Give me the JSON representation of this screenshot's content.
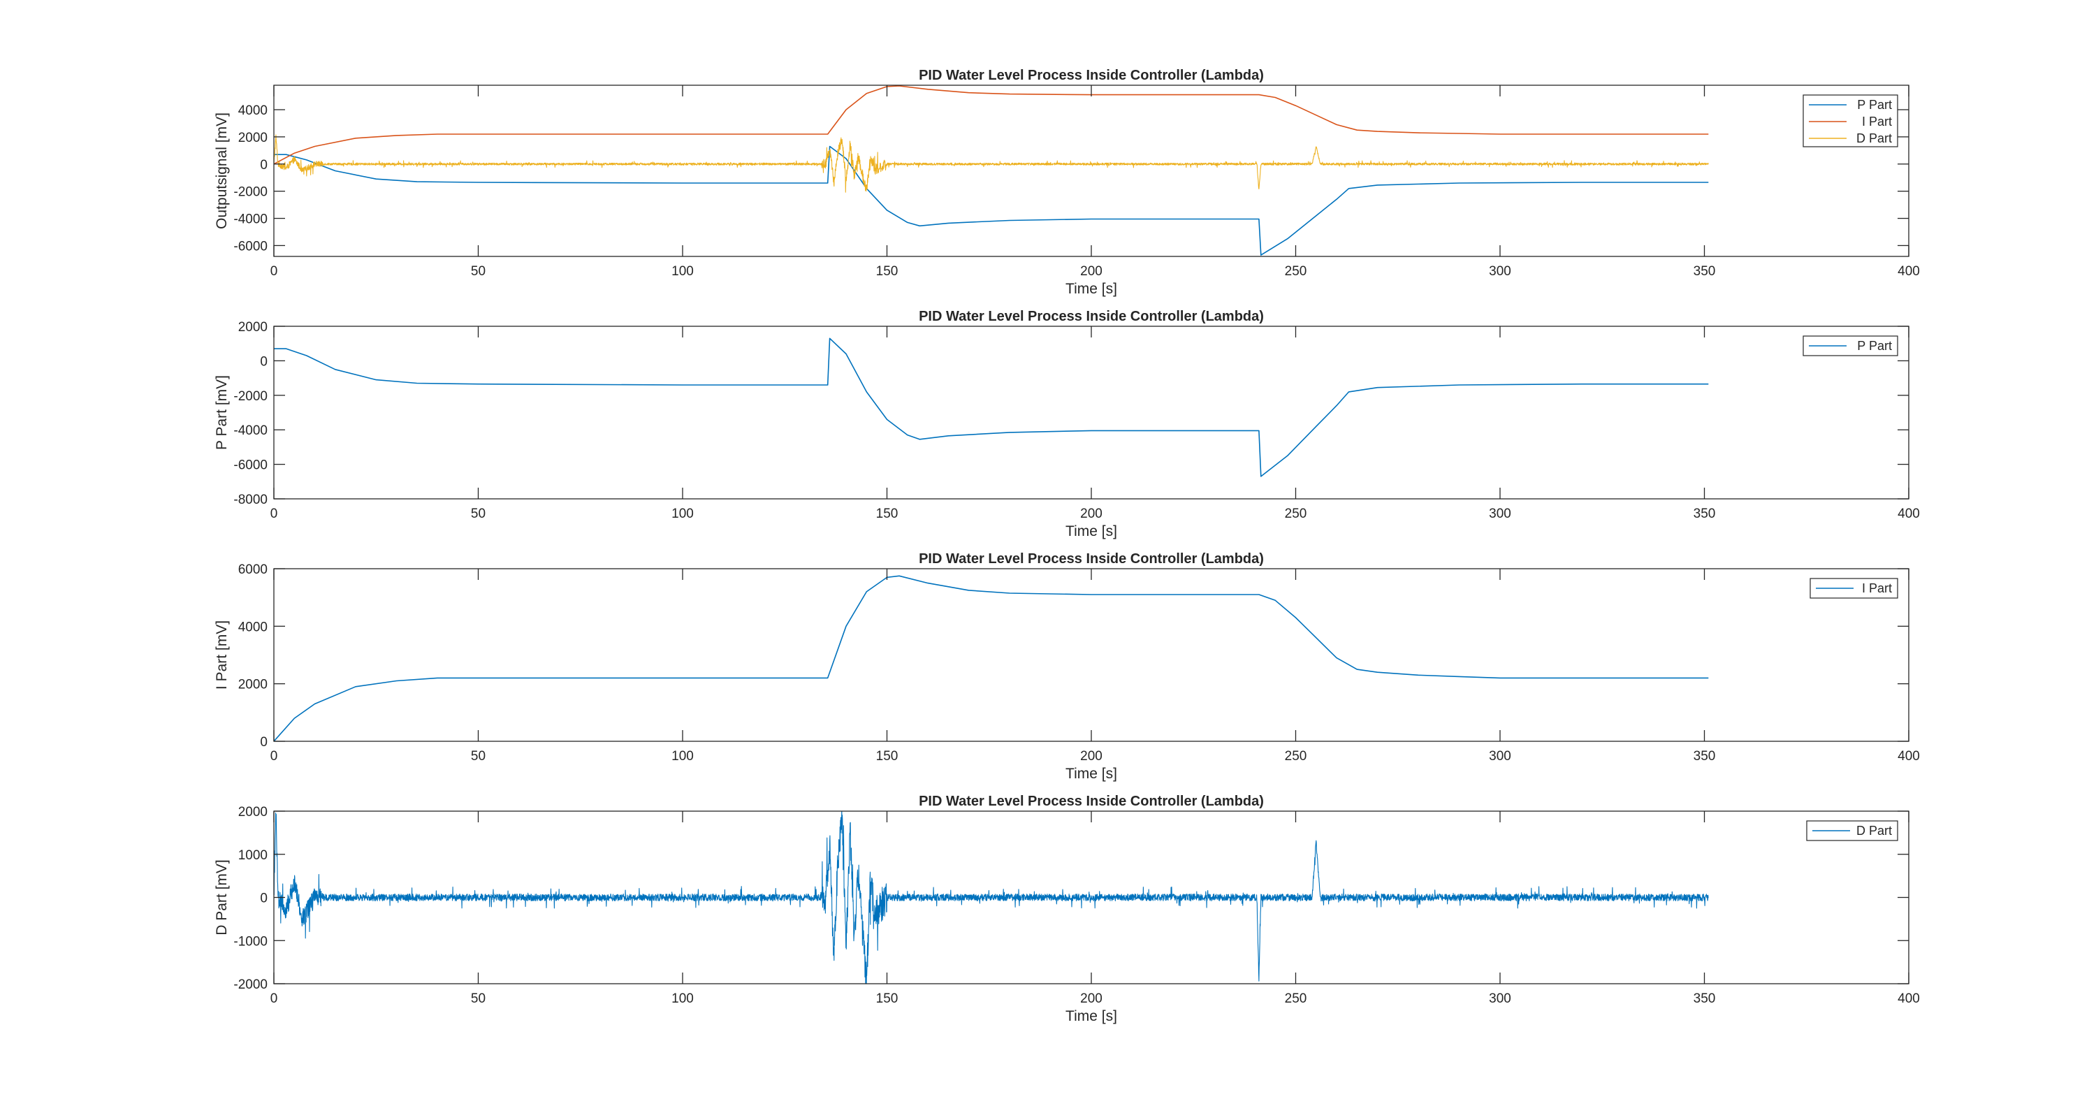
{
  "chart_data": [
    {
      "type": "line",
      "title": "PID Water Level Process Inside Controller (Lambda)",
      "xlabel": "Time [s]",
      "ylabel": "Outputsignal [mV]",
      "xlim": [
        0,
        400
      ],
      "ylim": [
        -6800,
        5800
      ],
      "xticks": [
        0,
        50,
        100,
        150,
        200,
        250,
        300,
        350,
        400
      ],
      "yticks": [
        -6000,
        -4000,
        -2000,
        0,
        2000,
        4000
      ],
      "legend": "top-right",
      "grid": false,
      "series": [
        {
          "name": "P Part",
          "color": "#0072BD",
          "x": [
            0,
            3,
            8,
            15,
            25,
            35,
            50,
            100,
            135.5,
            136,
            140,
            145,
            150,
            155,
            158,
            165,
            180,
            200,
            220,
            241,
            241.5,
            248,
            255,
            260,
            263,
            270,
            290,
            320,
            351
          ],
          "y": [
            700,
            700,
            300,
            -500,
            -1100,
            -1300,
            -1350,
            -1400,
            -1400,
            1300,
            400,
            -1800,
            -3400,
            -4300,
            -4550,
            -4350,
            -4150,
            -4050,
            -4050,
            -4050,
            -6700,
            -5500,
            -3800,
            -2600,
            -1800,
            -1550,
            -1400,
            -1350,
            -1350
          ]
        },
        {
          "name": "I Part",
          "color": "#D95319",
          "x": [
            0,
            5,
            10,
            20,
            30,
            40,
            50,
            100,
            135.5,
            140,
            145,
            150,
            153,
            160,
            170,
            180,
            200,
            220,
            241,
            245,
            250,
            255,
            260,
            265,
            270,
            280,
            290,
            300,
            320,
            351
          ],
          "y": [
            0,
            800,
            1300,
            1900,
            2100,
            2200,
            2200,
            2200,
            2200,
            4000,
            5200,
            5700,
            5750,
            5500,
            5250,
            5150,
            5100,
            5100,
            5100,
            4900,
            4300,
            3600,
            2900,
            2500,
            2400,
            2300,
            2250,
            2200,
            2200,
            2200
          ]
        },
        {
          "name": "D Part",
          "color": "#EDB120",
          "noise": true,
          "x": [
            0,
            0.5,
            1,
            3,
            5,
            7,
            10,
            20,
            135,
            136,
            137,
            138,
            139,
            140,
            141,
            142,
            143,
            144,
            145,
            146,
            147,
            150,
            240.5,
            241,
            241.5,
            254,
            255,
            256,
            260,
            351
          ],
          "y": [
            0,
            2000,
            0,
            -300,
            350,
            -500,
            0,
            0,
            0,
            1200,
            -1400,
            900,
            1800,
            -1200,
            1500,
            -900,
            600,
            -800,
            -1900,
            500,
            -400,
            0,
            0,
            -1900,
            0,
            0,
            1300,
            0,
            0,
            0
          ]
        }
      ]
    },
    {
      "type": "line",
      "title": "PID Water Level Process Inside Controller (Lambda)",
      "xlabel": "Time [s]",
      "ylabel": "P Part [mV]",
      "xlim": [
        0,
        400
      ],
      "ylim": [
        -8000,
        2000
      ],
      "xticks": [
        0,
        50,
        100,
        150,
        200,
        250,
        300,
        350,
        400
      ],
      "yticks": [
        -8000,
        -6000,
        -4000,
        -2000,
        0,
        2000
      ],
      "legend": "top-right",
      "grid": false,
      "series": [
        {
          "name": "P Part",
          "color": "#0072BD",
          "x": [
            0,
            3,
            8,
            15,
            25,
            35,
            50,
            100,
            135.5,
            136,
            140,
            145,
            150,
            155,
            158,
            165,
            180,
            200,
            220,
            241,
            241.5,
            248,
            255,
            260,
            263,
            270,
            290,
            320,
            351
          ],
          "y": [
            700,
            700,
            300,
            -500,
            -1100,
            -1300,
            -1350,
            -1400,
            -1400,
            1300,
            400,
            -1800,
            -3400,
            -4300,
            -4550,
            -4350,
            -4150,
            -4050,
            -4050,
            -4050,
            -6700,
            -5500,
            -3800,
            -2600,
            -1800,
            -1550,
            -1400,
            -1350,
            -1350
          ]
        }
      ]
    },
    {
      "type": "line",
      "title": "PID Water Level Process Inside Controller (Lambda)",
      "xlabel": "Time [s]",
      "ylabel": "I Part [mV]",
      "xlim": [
        0,
        400
      ],
      "ylim": [
        0,
        6000
      ],
      "xticks": [
        0,
        50,
        100,
        150,
        200,
        250,
        300,
        350,
        400
      ],
      "yticks": [
        0,
        2000,
        4000,
        6000
      ],
      "legend": "top-right",
      "grid": false,
      "series": [
        {
          "name": "I Part",
          "color": "#0072BD",
          "x": [
            0,
            5,
            10,
            20,
            30,
            40,
            50,
            100,
            135.5,
            140,
            145,
            150,
            153,
            160,
            170,
            180,
            200,
            220,
            241,
            245,
            250,
            255,
            260,
            265,
            270,
            280,
            290,
            300,
            320,
            351
          ],
          "y": [
            0,
            800,
            1300,
            1900,
            2100,
            2200,
            2200,
            2200,
            2200,
            4000,
            5200,
            5700,
            5750,
            5500,
            5250,
            5150,
            5100,
            5100,
            5100,
            4900,
            4300,
            3600,
            2900,
            2500,
            2400,
            2300,
            2250,
            2200,
            2200,
            2200
          ]
        }
      ]
    },
    {
      "type": "line",
      "title": "PID Water Level Process Inside Controller (Lambda)",
      "xlabel": "Time [s]",
      "ylabel": "D Part [mV]",
      "xlim": [
        0,
        400
      ],
      "ylim": [
        -2000,
        2000
      ],
      "xticks": [
        0,
        50,
        100,
        150,
        200,
        250,
        300,
        350,
        400
      ],
      "yticks": [
        -2000,
        -1000,
        0,
        1000,
        2000
      ],
      "legend": "top-right",
      "grid": false,
      "series": [
        {
          "name": "D Part",
          "color": "#0072BD",
          "noise": true,
          "x": [
            0,
            0.5,
            1,
            3,
            5,
            7,
            10,
            20,
            135,
            136,
            137,
            138,
            139,
            140,
            141,
            142,
            143,
            144,
            145,
            146,
            147,
            150,
            240.5,
            241,
            241.5,
            254,
            255,
            256,
            260,
            351
          ],
          "y": [
            0,
            2000,
            0,
            -300,
            350,
            -500,
            0,
            0,
            0,
            1200,
            -1400,
            900,
            1800,
            -1200,
            1500,
            -900,
            600,
            -800,
            -1900,
            500,
            -400,
            0,
            0,
            -1900,
            0,
            0,
            1300,
            0,
            0,
            0
          ]
        }
      ]
    }
  ]
}
